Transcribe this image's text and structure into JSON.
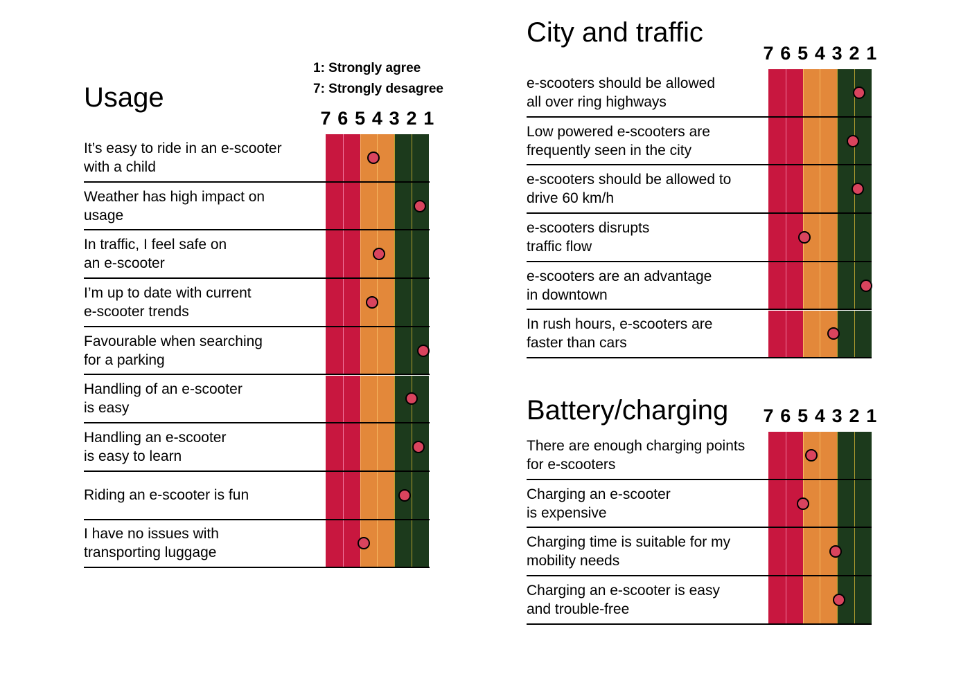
{
  "scale_note": {
    "line1": "1: Strongly agree",
    "line2": "7: Strongly desagree"
  },
  "colors": {
    "strongly_disagree": "#c8173f",
    "neutral": "#e3883a",
    "agree": "#1c3a1c",
    "divider_red": "#f07aa0",
    "divider_orange": "#f5b860",
    "divider_green": "#b5a030",
    "marker": "#d9445e"
  },
  "chart_data": [
    {
      "type": "table",
      "title": "Usage",
      "scale_labels": [
        "7",
        "6",
        "5",
        "4",
        "3",
        "2",
        "1"
      ],
      "value_range": [
        1,
        7
      ],
      "statements": [
        {
          "label": "It’s easy to ride in an e-scooter\nwith a child",
          "value": 4.2
        },
        {
          "label": "Weather has high impact on\nusage",
          "value": 1.5
        },
        {
          "label": "In traffic, I feel safe on\nan e-scooter",
          "value": 3.9
        },
        {
          "label": "I’m up to date with current\ne-scooter trends",
          "value": 4.3
        },
        {
          "label": "Favourable when searching\nfor a parking",
          "value": 1.3
        },
        {
          "label": "Handling of an e-scooter\nis easy",
          "value": 2.0
        },
        {
          "label": "Handling an e-scooter\nis easy to learn",
          "value": 1.6
        },
        {
          "label": "Riding an e-scooter is fun",
          "value": 2.4
        },
        {
          "label": "I have no issues with\ntransporting luggage",
          "value": 4.8
        }
      ]
    },
    {
      "type": "table",
      "title": "City and traffic",
      "scale_labels": [
        "7",
        "6",
        "5",
        "4",
        "3",
        "2",
        "1"
      ],
      "value_range": [
        1,
        7
      ],
      "statements": [
        {
          "label": "e-scooters should be allowed\nall over ring highways",
          "value": 1.7
        },
        {
          "label": "Low powered e-scooters are\nfrequently seen in the city",
          "value": 2.1
        },
        {
          "label": "e-scooters should be allowed to\ndrive 60 km/h",
          "value": 1.8
        },
        {
          "label": "e-scooters disrupts\ntraffic flow",
          "value": 4.9
        },
        {
          "label": "e-scooters are an advantage\nin downtown",
          "value": 1.3
        },
        {
          "label": "In rush hours, e-scooters are\nfaster than cars",
          "value": 3.2
        }
      ]
    },
    {
      "type": "table",
      "title": "Battery/charging",
      "scale_labels": [
        "7",
        "6",
        "5",
        "4",
        "3",
        "2",
        "1"
      ],
      "value_range": [
        1,
        7
      ],
      "statements": [
        {
          "label": "There are enough charging points\nfor e-scooters",
          "value": 4.5
        },
        {
          "label": "Charging an e-scooter\nis expensive",
          "value": 5.0
        },
        {
          "label": "Charging time is suitable for my\nmobility needs",
          "value": 3.1
        },
        {
          "label": "Charging an e-scooter is easy\nand  trouble-free",
          "value": 2.9
        }
      ]
    }
  ]
}
